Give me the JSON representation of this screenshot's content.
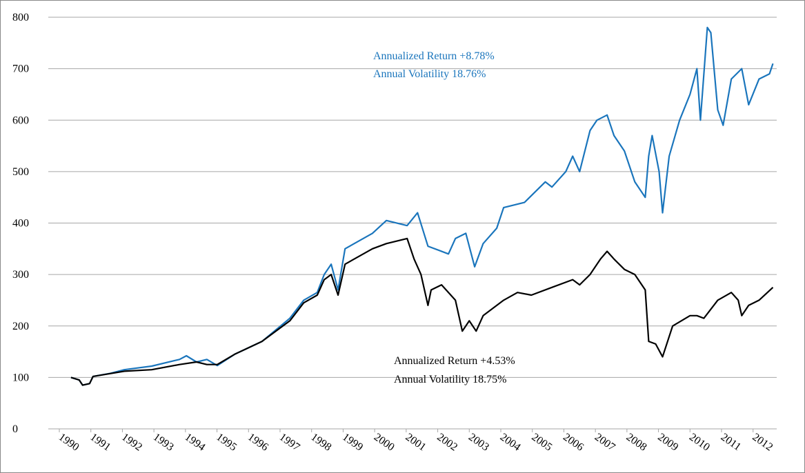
{
  "chart_data": {
    "type": "line",
    "xlim": [
      1990,
      2012.75
    ],
    "xticks": [
      1990,
      1991,
      1992,
      1993,
      1994,
      1995,
      1996,
      1997,
      1998,
      1999,
      2000,
      2001,
      2002,
      2003,
      2004,
      2005,
      2006,
      2007,
      2008,
      2009,
      2010,
      2011,
      2012
    ],
    "ylim": [
      0,
      800
    ],
    "yticks": [
      0,
      100,
      200,
      300,
      400,
      500,
      600,
      700,
      800
    ],
    "grid": true,
    "series": [
      {
        "color": "#1a75bc",
        "x": [
          1990.37,
          1990.63,
          1990.74,
          1990.96,
          1991.07,
          1991.62,
          1992.06,
          1992.93,
          1993.81,
          1994.03,
          1994.35,
          1994.68,
          1995.01,
          1995.56,
          1996.43,
          1997.31,
          1997.75,
          1998.18,
          1998.4,
          1998.62,
          1998.84,
          1999.06,
          1999.93,
          2000.37,
          2001.03,
          2001.36,
          2001.69,
          2002.34,
          2002.56,
          2002.89,
          2003.17,
          2003.44,
          2003.87,
          2004.09,
          2004.75,
          2005.08,
          2005.41,
          2005.62,
          2006.06,
          2006.28,
          2006.5,
          2006.83,
          2007.05,
          2007.37,
          2007.59,
          2007.92,
          2008.25,
          2008.58,
          2008.69,
          2008.8,
          2009.02,
          2009.13,
          2009.34,
          2009.67,
          2010.0,
          2010.22,
          2010.33,
          2010.55,
          2010.66,
          2010.88,
          2011.05,
          2011.31,
          2011.64,
          2011.86,
          2012.19,
          2012.52,
          2012.63
        ],
        "values": [
          100,
          95,
          85,
          88,
          102,
          108,
          115,
          122,
          135,
          142,
          130,
          135,
          123,
          145,
          170,
          215,
          250,
          265,
          300,
          320,
          270,
          350,
          380,
          405,
          395,
          420,
          355,
          340,
          370,
          380,
          315,
          360,
          390,
          430,
          440,
          460,
          480,
          470,
          500,
          530,
          500,
          580,
          600,
          610,
          570,
          540,
          480,
          450,
          530,
          570,
          500,
          420,
          530,
          600,
          650,
          700,
          600,
          780,
          770,
          620,
          590,
          680,
          700,
          630,
          680,
          690,
          710
        ]
      },
      {
        "color": "#000000",
        "x": [
          1990.37,
          1990.63,
          1990.74,
          1990.96,
          1991.07,
          1992.06,
          1992.93,
          1993.81,
          1994.35,
          1994.68,
          1995.01,
          1995.56,
          1996.43,
          1997.31,
          1997.75,
          1998.18,
          1998.4,
          1998.62,
          1998.84,
          1999.06,
          1999.93,
          2000.37,
          2001.03,
          2001.25,
          2001.47,
          2001.69,
          2001.79,
          2002.12,
          2002.56,
          2002.78,
          2003.0,
          2003.22,
          2003.44,
          2004.09,
          2004.53,
          2004.97,
          2005.62,
          2006.28,
          2006.5,
          2006.83,
          2007.16,
          2007.37,
          2007.59,
          2007.92,
          2008.25,
          2008.58,
          2008.69,
          2008.91,
          2009.13,
          2009.45,
          2010.0,
          2010.22,
          2010.44,
          2010.88,
          2011.31,
          2011.53,
          2011.64,
          2011.86,
          2012.19,
          2012.63
        ],
        "values": [
          100,
          95,
          85,
          88,
          102,
          112,
          115,
          125,
          130,
          125,
          125,
          145,
          170,
          210,
          245,
          260,
          290,
          300,
          260,
          320,
          350,
          360,
          370,
          330,
          300,
          240,
          270,
          280,
          250,
          190,
          210,
          190,
          220,
          250,
          265,
          260,
          275,
          290,
          280,
          300,
          330,
          345,
          330,
          310,
          300,
          270,
          170,
          165,
          140,
          200,
          220,
          220,
          215,
          250,
          265,
          250,
          220,
          240,
          250,
          275
        ]
      }
    ],
    "annotations": [
      {
        "text": "Annualized Return +8.78%",
        "color": "#1a75bc"
      },
      {
        "text": "Annual Volatility 18.76%",
        "color": "#1a75bc"
      },
      {
        "text": "Annualized Return +4.53%",
        "color": "#000000"
      },
      {
        "text": "Annual Volatility 18.75%",
        "color": "#000000"
      }
    ]
  }
}
